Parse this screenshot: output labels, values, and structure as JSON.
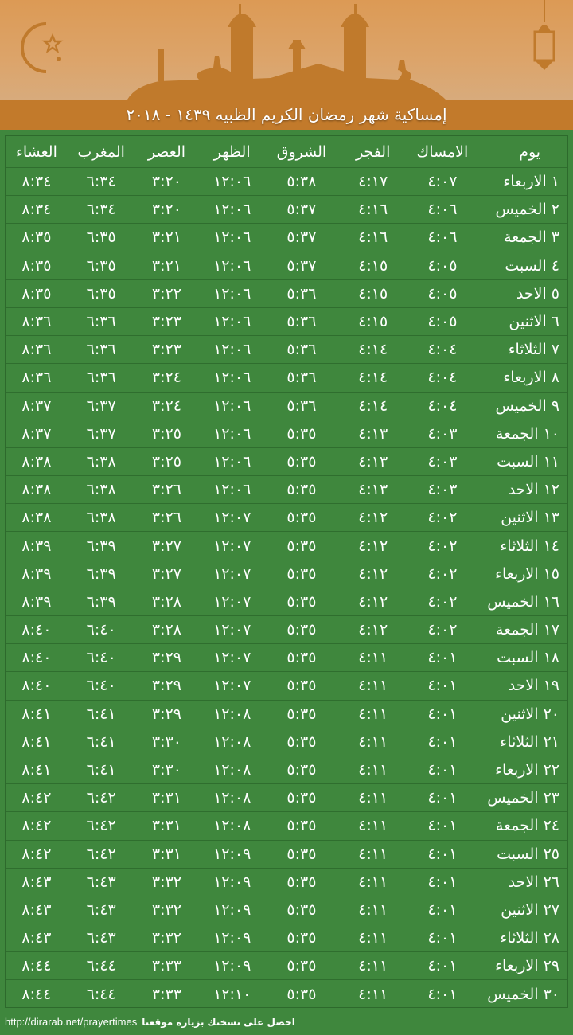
{
  "header": {
    "title": "إمساكية شهر رمضان الكريم الظبيه ١٤٣٩ - ٢٠١٨"
  },
  "colors": {
    "banner": "#dc9a55",
    "title_bar": "#c27a2b",
    "background": "#3f873d",
    "silhouette": "#c07a2c"
  },
  "icons": [
    "crescent-star-icon",
    "mosque-silhouette",
    "lantern-icon"
  ],
  "table": {
    "columns": [
      "يوم",
      "الامساك",
      "الفجر",
      "الشروق",
      "الظهر",
      "العصر",
      "المغرب",
      "العشاء"
    ],
    "rows": [
      [
        "١ الاربعاء",
        "٤:٠٧",
        "٤:١٧",
        "٥:٣٨",
        "١٢:٠٦",
        "٣:٢٠",
        "٦:٣٤",
        "٨:٣٤"
      ],
      [
        "٢ الخميس",
        "٤:٠٦",
        "٤:١٦",
        "٥:٣٧",
        "١٢:٠٦",
        "٣:٢٠",
        "٦:٣٤",
        "٨:٣٤"
      ],
      [
        "٣ الجمعة",
        "٤:٠٦",
        "٤:١٦",
        "٥:٣٧",
        "١٢:٠٦",
        "٣:٢١",
        "٦:٣٥",
        "٨:٣٥"
      ],
      [
        "٤ السبت",
        "٤:٠٥",
        "٤:١٥",
        "٥:٣٧",
        "١٢:٠٦",
        "٣:٢١",
        "٦:٣٥",
        "٨:٣٥"
      ],
      [
        "٥ الاحد",
        "٤:٠٥",
        "٤:١٥",
        "٥:٣٦",
        "١٢:٠٦",
        "٣:٢٢",
        "٦:٣٥",
        "٨:٣٥"
      ],
      [
        "٦ الاثنين",
        "٤:٠٥",
        "٤:١٥",
        "٥:٣٦",
        "١٢:٠٦",
        "٣:٢٣",
        "٦:٣٦",
        "٨:٣٦"
      ],
      [
        "٧ الثلاثاء",
        "٤:٠٤",
        "٤:١٤",
        "٥:٣٦",
        "١٢:٠٦",
        "٣:٢٣",
        "٦:٣٦",
        "٨:٣٦"
      ],
      [
        "٨ الاربعاء",
        "٤:٠٤",
        "٤:١٤",
        "٥:٣٦",
        "١٢:٠٦",
        "٣:٢٤",
        "٦:٣٦",
        "٨:٣٦"
      ],
      [
        "٩ الخميس",
        "٤:٠٤",
        "٤:١٤",
        "٥:٣٦",
        "١٢:٠٦",
        "٣:٢٤",
        "٦:٣٧",
        "٨:٣٧"
      ],
      [
        "١٠ الجمعة",
        "٤:٠٣",
        "٤:١٣",
        "٥:٣٥",
        "١٢:٠٦",
        "٣:٢٥",
        "٦:٣٧",
        "٨:٣٧"
      ],
      [
        "١١ السبت",
        "٤:٠٣",
        "٤:١٣",
        "٥:٣٥",
        "١٢:٠٦",
        "٣:٢٥",
        "٦:٣٨",
        "٨:٣٨"
      ],
      [
        "١٢ الاحد",
        "٤:٠٣",
        "٤:١٣",
        "٥:٣٥",
        "١٢:٠٦",
        "٣:٢٦",
        "٦:٣٨",
        "٨:٣٨"
      ],
      [
        "١٣ الاثنين",
        "٤:٠٢",
        "٤:١٢",
        "٥:٣٥",
        "١٢:٠٧",
        "٣:٢٦",
        "٦:٣٨",
        "٨:٣٨"
      ],
      [
        "١٤ الثلاثاء",
        "٤:٠٢",
        "٤:١٢",
        "٥:٣٥",
        "١٢:٠٧",
        "٣:٢٧",
        "٦:٣٩",
        "٨:٣٩"
      ],
      [
        "١٥ الاربعاء",
        "٤:٠٢",
        "٤:١٢",
        "٥:٣٥",
        "١٢:٠٧",
        "٣:٢٧",
        "٦:٣٩",
        "٨:٣٩"
      ],
      [
        "١٦ الخميس",
        "٤:٠٢",
        "٤:١٢",
        "٥:٣٥",
        "١٢:٠٧",
        "٣:٢٨",
        "٦:٣٩",
        "٨:٣٩"
      ],
      [
        "١٧ الجمعة",
        "٤:٠٢",
        "٤:١٢",
        "٥:٣٥",
        "١٢:٠٧",
        "٣:٢٨",
        "٦:٤٠",
        "٨:٤٠"
      ],
      [
        "١٨ السبت",
        "٤:٠١",
        "٤:١١",
        "٥:٣٥",
        "١٢:٠٧",
        "٣:٢٩",
        "٦:٤٠",
        "٨:٤٠"
      ],
      [
        "١٩ الاحد",
        "٤:٠١",
        "٤:١١",
        "٥:٣٥",
        "١٢:٠٧",
        "٣:٢٩",
        "٦:٤٠",
        "٨:٤٠"
      ],
      [
        "٢٠ الاثنين",
        "٤:٠١",
        "٤:١١",
        "٥:٣٥",
        "١٢:٠٨",
        "٣:٢٩",
        "٦:٤١",
        "٨:٤١"
      ],
      [
        "٢١ الثلاثاء",
        "٤:٠١",
        "٤:١١",
        "٥:٣٥",
        "١٢:٠٨",
        "٣:٣٠",
        "٦:٤١",
        "٨:٤١"
      ],
      [
        "٢٢ الاربعاء",
        "٤:٠١",
        "٤:١١",
        "٥:٣٥",
        "١٢:٠٨",
        "٣:٣٠",
        "٦:٤١",
        "٨:٤١"
      ],
      [
        "٢٣ الخميس",
        "٤:٠١",
        "٤:١١",
        "٥:٣٥",
        "١٢:٠٨",
        "٣:٣١",
        "٦:٤٢",
        "٨:٤٢"
      ],
      [
        "٢٤ الجمعة",
        "٤:٠١",
        "٤:١١",
        "٥:٣٥",
        "١٢:٠٨",
        "٣:٣١",
        "٦:٤٢",
        "٨:٤٢"
      ],
      [
        "٢٥ السبت",
        "٤:٠١",
        "٤:١١",
        "٥:٣٥",
        "١٢:٠٩",
        "٣:٣١",
        "٦:٤٢",
        "٨:٤٢"
      ],
      [
        "٢٦ الاحد",
        "٤:٠١",
        "٤:١١",
        "٥:٣٥",
        "١٢:٠٩",
        "٣:٣٢",
        "٦:٤٣",
        "٨:٤٣"
      ],
      [
        "٢٧ الاثنين",
        "٤:٠١",
        "٤:١١",
        "٥:٣٥",
        "١٢:٠٩",
        "٣:٣٢",
        "٦:٤٣",
        "٨:٤٣"
      ],
      [
        "٢٨ الثلاثاء",
        "٤:٠١",
        "٤:١١",
        "٥:٣٥",
        "١٢:٠٩",
        "٣:٣٢",
        "٦:٤٣",
        "٨:٤٣"
      ],
      [
        "٢٩ الاربعاء",
        "٤:٠١",
        "٤:١١",
        "٥:٣٥",
        "١٢:٠٩",
        "٣:٣٣",
        "٦:٤٤",
        "٨:٤٤"
      ],
      [
        "٣٠ الخميس",
        "٤:٠١",
        "٤:١١",
        "٥:٣٥",
        "١٢:١٠",
        "٣:٣٣",
        "٦:٤٤",
        "٨:٤٤"
      ]
    ]
  },
  "footer": {
    "url": "http://dirarab.net/prayertimes",
    "text": "احصل على نسختك بزيارة موقعنا"
  }
}
